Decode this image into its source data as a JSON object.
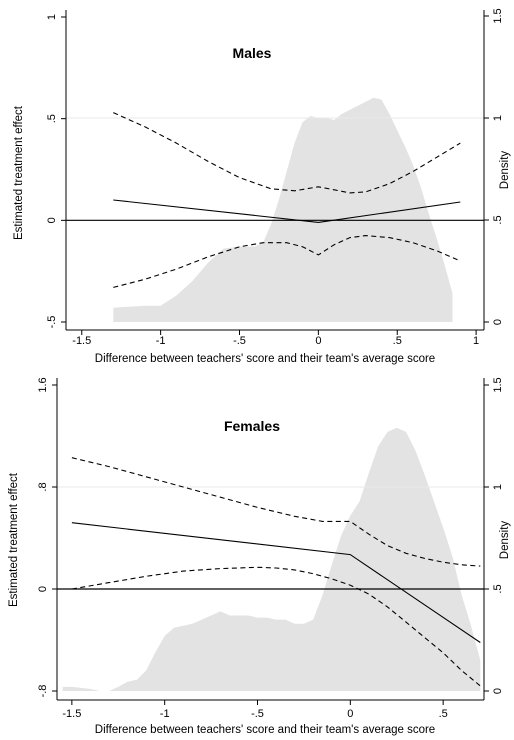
{
  "chart_data": [
    {
      "type": "line",
      "title": "Males",
      "xlabel": "Difference between teachers' score and their team's average score",
      "ylabel": "Estimated treatment effect",
      "y2label": "Density",
      "xlim": [
        -1.6,
        1.05
      ],
      "ylim": [
        -0.5,
        1
      ],
      "y2lim": [
        0,
        1.5
      ],
      "xticks": [
        "-1.5",
        "-1",
        "-.5",
        "0",
        ".5",
        "1"
      ],
      "yticks": [
        "-.5",
        "0",
        ".5",
        "1"
      ],
      "y2ticks": [
        "0",
        ".5",
        "1",
        "1.5"
      ],
      "series": [
        {
          "role": "estimate",
          "style": "solid",
          "x": [
            -1.3,
            0,
            0.9
          ],
          "y": [
            0.1,
            -0.01,
            0.09
          ]
        },
        {
          "role": "upper_ci",
          "style": "dashed",
          "x": [
            -1.3,
            -1.1,
            -0.9,
            -0.7,
            -0.5,
            -0.3,
            -0.15,
            0,
            0.1,
            0.2,
            0.3,
            0.45,
            0.6,
            0.75,
            0.9
          ],
          "y": [
            0.53,
            0.46,
            0.38,
            0.29,
            0.21,
            0.155,
            0.145,
            0.165,
            0.15,
            0.135,
            0.14,
            0.18,
            0.24,
            0.31,
            0.38
          ]
        },
        {
          "role": "lower_ci",
          "style": "dashed",
          "x": [
            -1.3,
            -1.1,
            -0.9,
            -0.7,
            -0.5,
            -0.35,
            -0.2,
            -0.1,
            0,
            0.1,
            0.2,
            0.3,
            0.45,
            0.6,
            0.75,
            0.9
          ],
          "y": [
            -0.33,
            -0.29,
            -0.24,
            -0.18,
            -0.13,
            -0.11,
            -0.11,
            -0.13,
            -0.17,
            -0.12,
            -0.085,
            -0.075,
            -0.085,
            -0.11,
            -0.15,
            -0.2
          ]
        }
      ],
      "density": {
        "x": [
          -1.3,
          -1.2,
          -1.1,
          -1.0,
          -0.9,
          -0.8,
          -0.7,
          -0.6,
          -0.5,
          -0.45,
          -0.4,
          -0.35,
          -0.3,
          -0.25,
          -0.2,
          -0.15,
          -0.1,
          -0.05,
          0,
          0.05,
          0.1,
          0.15,
          0.2,
          0.25,
          0.3,
          0.35,
          0.4,
          0.45,
          0.5,
          0.55,
          0.6,
          0.65,
          0.7,
          0.75,
          0.8,
          0.85
        ],
        "y": [
          0.07,
          0.075,
          0.08,
          0.08,
          0.13,
          0.2,
          0.29,
          0.36,
          0.37,
          0.37,
          0.37,
          0.39,
          0.48,
          0.6,
          0.74,
          0.88,
          0.98,
          1.01,
          1.0,
          1.0,
          0.99,
          1.02,
          1.04,
          1.06,
          1.08,
          1.1,
          1.09,
          1.02,
          0.94,
          0.86,
          0.77,
          0.66,
          0.53,
          0.41,
          0.28,
          0.14
        ]
      },
      "reference_lines": [
        {
          "axis": "y",
          "value": 0
        },
        {
          "axis": "y2",
          "value": 1
        }
      ]
    },
    {
      "type": "line",
      "title": "Females",
      "xlabel": "Difference between teachers' score and their team's average score",
      "ylabel": "Estimated treatment effect",
      "y2label": "Density",
      "xlim": [
        -1.58,
        0.72
      ],
      "ylim": [
        -0.8,
        1.6
      ],
      "y2lim": [
        0,
        1.5
      ],
      "xticks": [
        "-1.5",
        "-1",
        "-.5",
        "0",
        ".5"
      ],
      "yticks": [
        "-.8",
        "0",
        ".8",
        "1.6"
      ],
      "y2ticks": [
        "0",
        ".5",
        "1",
        "1.5"
      ],
      "series": [
        {
          "role": "estimate",
          "style": "solid",
          "x": [
            -1.5,
            0,
            0.7
          ],
          "y": [
            0.52,
            0.27,
            -0.42
          ]
        },
        {
          "role": "upper_ci",
          "style": "dashed",
          "x": [
            -1.5,
            -1.3,
            -1.1,
            -0.9,
            -0.7,
            -0.5,
            -0.3,
            -0.15,
            -0.05,
            0,
            0.1,
            0.2,
            0.3,
            0.4,
            0.5,
            0.6,
            0.7
          ],
          "y": [
            1.03,
            0.96,
            0.88,
            0.8,
            0.72,
            0.64,
            0.57,
            0.53,
            0.53,
            0.53,
            0.43,
            0.34,
            0.28,
            0.24,
            0.21,
            0.19,
            0.18
          ]
        },
        {
          "role": "lower_ci",
          "style": "dashed",
          "x": [
            -1.5,
            -1.3,
            -1.1,
            -0.9,
            -0.7,
            -0.5,
            -0.4,
            -0.3,
            -0.2,
            -0.1,
            0,
            0.1,
            0.2,
            0.3,
            0.4,
            0.5,
            0.6,
            0.7
          ],
          "y": [
            0.0,
            0.05,
            0.1,
            0.14,
            0.16,
            0.17,
            0.165,
            0.15,
            0.12,
            0.08,
            0.03,
            -0.04,
            -0.14,
            -0.26,
            -0.38,
            -0.5,
            -0.64,
            -0.76
          ]
        }
      ],
      "density": {
        "x": [
          -1.55,
          -1.5,
          -1.45,
          -1.4,
          -1.35,
          -1.3,
          -1.25,
          -1.2,
          -1.15,
          -1.1,
          -1.05,
          -1.0,
          -0.95,
          -0.9,
          -0.85,
          -0.8,
          -0.75,
          -0.7,
          -0.65,
          -0.6,
          -0.55,
          -0.5,
          -0.45,
          -0.4,
          -0.35,
          -0.3,
          -0.25,
          -0.2,
          -0.15,
          -0.1,
          -0.05,
          0,
          0.05,
          0.1,
          0.15,
          0.2,
          0.25,
          0.3,
          0.35,
          0.4,
          0.45,
          0.5,
          0.55,
          0.6,
          0.65,
          0.7
        ],
        "y": [
          0.02,
          0.02,
          0.015,
          0.01,
          0.0,
          0.0,
          0.02,
          0.045,
          0.055,
          0.1,
          0.19,
          0.27,
          0.31,
          0.32,
          0.33,
          0.35,
          0.37,
          0.39,
          0.37,
          0.37,
          0.37,
          0.36,
          0.36,
          0.35,
          0.35,
          0.33,
          0.33,
          0.35,
          0.47,
          0.62,
          0.76,
          0.86,
          0.93,
          1.07,
          1.2,
          1.27,
          1.29,
          1.27,
          1.18,
          1.06,
          0.93,
          0.8,
          0.66,
          0.47,
          0.32,
          0.15
        ]
      },
      "reference_lines": [
        {
          "axis": "y",
          "value": 0
        },
        {
          "axis": "y2",
          "value": 1
        }
      ]
    }
  ]
}
